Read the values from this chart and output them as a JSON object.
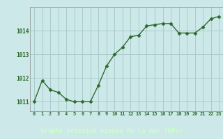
{
  "x": [
    0,
    1,
    2,
    3,
    4,
    5,
    6,
    7,
    8,
    9,
    10,
    11,
    12,
    13,
    14,
    15,
    16,
    17,
    18,
    19,
    20,
    21,
    22,
    23
  ],
  "y": [
    1011.0,
    1011.9,
    1011.5,
    1011.4,
    1011.1,
    1011.0,
    1011.0,
    1011.0,
    1011.7,
    1012.5,
    1013.0,
    1013.3,
    1013.75,
    1013.8,
    1014.2,
    1014.25,
    1014.3,
    1014.3,
    1013.9,
    1013.9,
    1013.9,
    1014.15,
    1014.5,
    1014.6
  ],
  "line_color": "#2d6a2d",
  "marker": "D",
  "marker_size": 2.5,
  "bg_color": "#cce8e8",
  "plot_bg_color": "#cce8e8",
  "grid_color": "#aacccc",
  "bottom_bar_color": "#336633",
  "xlabel": "Graphe pression niveau de la mer (hPa)",
  "xlabel_color": "#ccffcc",
  "tick_color": "#2d6a2d",
  "ylim": [
    1010.6,
    1015.0
  ],
  "yticks": [
    1011,
    1012,
    1013,
    1014
  ],
  "xticks": [
    0,
    1,
    2,
    3,
    4,
    5,
    6,
    7,
    8,
    9,
    10,
    11,
    12,
    13,
    14,
    15,
    16,
    17,
    18,
    19,
    20,
    21,
    22,
    23
  ]
}
